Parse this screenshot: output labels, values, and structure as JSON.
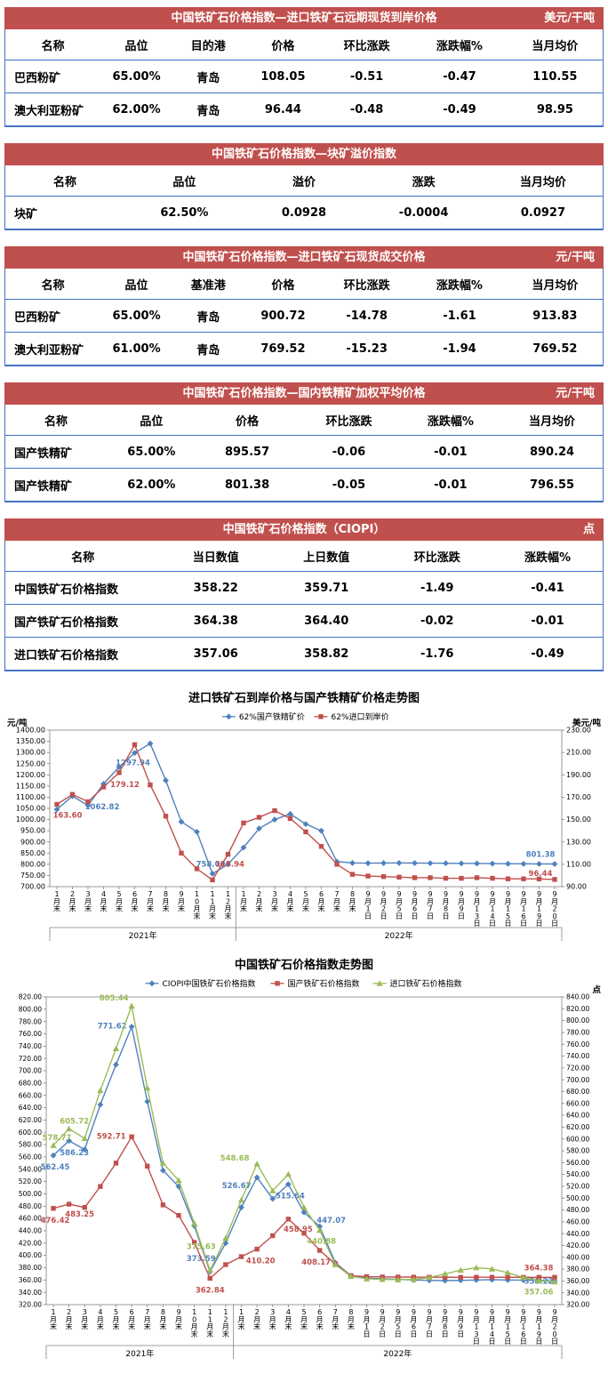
{
  "colors": {
    "header_bar": "#C0504D",
    "table_border": "#4472C4",
    "series_blue": "#4F81BD",
    "series_red": "#C0504D",
    "series_green": "#9BBB59"
  },
  "tables": [
    {
      "title": "中国铁矿石价格指数—进口铁矿石远期现货到岸价格",
      "unit": "美元/干吨",
      "headers": [
        "名称",
        "品位",
        "目的港",
        "价格",
        "环比涨跌",
        "涨跌幅%",
        "当月均价"
      ],
      "rows": [
        [
          "巴西粉矿",
          "65.00%",
          "青岛",
          "108.05",
          "-0.51",
          "-0.47",
          "110.55"
        ],
        [
          "澳大利亚粉矿",
          "62.00%",
          "青岛",
          "96.44",
          "-0.48",
          "-0.49",
          "98.95"
        ]
      ]
    },
    {
      "title": "中国铁矿石价格指数—块矿溢价指数",
      "unit": "",
      "headers": [
        "名称",
        "品位",
        "溢价",
        "涨跌",
        "当月均价"
      ],
      "rows": [
        [
          "块矿",
          "62.50%",
          "0.0928",
          "-0.0004",
          "0.0927"
        ]
      ]
    },
    {
      "title": "中国铁矿石价格指数—进口铁矿石现货成交价格",
      "unit": "元/干吨",
      "headers": [
        "名称",
        "品位",
        "基准港",
        "价格",
        "环比涨跌",
        "涨跌幅%",
        "当月均价"
      ],
      "rows": [
        [
          "巴西粉矿",
          "65.00%",
          "青岛",
          "900.72",
          "-14.78",
          "-1.61",
          "913.83"
        ],
        [
          "澳大利亚粉矿",
          "61.00%",
          "青岛",
          "769.52",
          "-15.23",
          "-1.94",
          "769.52"
        ]
      ]
    },
    {
      "title": "中国铁矿石价格指数—国内铁精矿加权平均价格",
      "unit": "元/干吨",
      "headers": [
        "名称",
        "品位",
        "价格",
        "环比涨跌",
        "涨跌幅%",
        "当月均价"
      ],
      "rows": [
        [
          "国产铁精矿",
          "65.00%",
          "895.57",
          "-0.06",
          "-0.01",
          "890.24"
        ],
        [
          "国产铁精矿",
          "62.00%",
          "801.38",
          "-0.05",
          "-0.01",
          "796.55"
        ]
      ]
    },
    {
      "title": "中国铁矿石价格指数（CIOPI）",
      "unit": "点",
      "headers": [
        "名称",
        "当日数值",
        "上日数值",
        "环比涨跌",
        "涨跌幅%"
      ],
      "rows": [
        [
          "中国铁矿石价格指数",
          "358.22",
          "359.71",
          "-1.49",
          "-0.41"
        ],
        [
          "国产铁矿石价格指数",
          "364.38",
          "364.40",
          "-0.02",
          "-0.01"
        ],
        [
          "进口铁矿石价格指数",
          "357.06",
          "358.82",
          "-1.76",
          "-0.49"
        ]
      ]
    }
  ],
  "chart_data": [
    {
      "type": "line",
      "title": "进口铁矿石到岸价格与国产铁精矿价格走势图",
      "grid": false,
      "legend_position": "top",
      "left_axis": {
        "unit": "元/吨",
        "min": 700,
        "max": 1400,
        "step": 50
      },
      "right_axis": {
        "unit": "美元/吨",
        "min": 90,
        "max": 230,
        "step": 20
      },
      "x": [
        "1月末",
        "2月末",
        "3月末",
        "4月末",
        "5月末",
        "6月末",
        "7月末",
        "8月末",
        "9月末",
        "10月末",
        "11月末",
        "12月末",
        "1月末",
        "2月末",
        "3月末",
        "4月末",
        "5月末",
        "6月末",
        "7月末",
        "8月末",
        "9月1日",
        "9月2日",
        "9月5日",
        "9月6日",
        "9月7日",
        "9月8日",
        "9月9日",
        "9月13日",
        "9月14日",
        "9月15日",
        "9月16日",
        "9月19日",
        "9月20日"
      ],
      "x_groups": [
        {
          "label": "2021年",
          "from": 0,
          "to": 11
        },
        {
          "label": "2022年",
          "from": 12,
          "to": 32
        }
      ],
      "series": [
        {
          "name": "62%国产铁精矿价",
          "color": "#4F81BD",
          "marker": "diamond",
          "axis": "left",
          "values": [
            1045,
            1105,
            1062.82,
            1160,
            1235,
            1297.94,
            1340,
            1175,
            990,
            945,
            758,
            800,
            875,
            960,
            1000,
            1025,
            980,
            950,
            812,
            806,
            805,
            805.5,
            806,
            805.5,
            805,
            804.5,
            804,
            803.5,
            803,
            802.5,
            802,
            801.5,
            801.38
          ],
          "labels": [
            {
              "i": 2,
              "text": "1062.82",
              "dx": 16,
              "dy": 4
            },
            {
              "i": 5,
              "text": "1297.94",
              "dx": -2,
              "dy": 14
            },
            {
              "i": 10,
              "text": "758.00",
              "dx": -2,
              "dy": -8
            },
            {
              "i": 32,
              "text": "801.38",
              "dx": -16,
              "dy": -8
            }
          ]
        },
        {
          "name": "62%进口到岸价",
          "color": "#C0504D",
          "marker": "square",
          "axis": "right",
          "values": [
            163.6,
            172.5,
            166,
            179.12,
            192,
            217,
            181,
            153,
            120,
            106,
            96,
            118.94,
            147,
            152,
            158,
            151,
            139,
            126,
            110,
            101,
            99.5,
            99,
            98.5,
            98,
            98,
            97.5,
            97.5,
            98,
            97.5,
            97,
            97,
            96.9,
            96.44
          ],
          "labels": [
            {
              "i": 0,
              "text": "163.60",
              "dx": 12,
              "dy": 15
            },
            {
              "i": 3,
              "text": "179.12",
              "dx": 24,
              "dy": 0
            },
            {
              "i": 11,
              "text": "118.94",
              "dx": 2,
              "dy": 14
            },
            {
              "i": 32,
              "text": "96.44",
              "dx": -16,
              "dy": -4
            }
          ]
        }
      ]
    },
    {
      "type": "line",
      "title": "中国铁矿石价格指数走势图",
      "grid": false,
      "legend_position": "top",
      "left_axis": {
        "unit": "",
        "min": 320,
        "max": 820,
        "step": 20
      },
      "right_axis": {
        "unit": "点",
        "min": 320,
        "max": 840,
        "step": 20
      },
      "x": [
        "1月末",
        "2月末",
        "3月末",
        "4月末",
        "5月末",
        "6月末",
        "7月末",
        "8月末",
        "9月末",
        "10月末",
        "11月末",
        "12月末",
        "1月末",
        "2月末",
        "3月末",
        "4月末",
        "5月末",
        "6月末",
        "7月末",
        "8月末",
        "9月1日",
        "9月2日",
        "9月5日",
        "9月6日",
        "9月7日",
        "9月8日",
        "9月9日",
        "9月13日",
        "9月14日",
        "9月15日",
        "9月16日",
        "9月19日",
        "9月20日"
      ],
      "x_groups": [
        {
          "label": "2021年",
          "from": 0,
          "to": 11
        },
        {
          "label": "2022年",
          "from": 12,
          "to": 32
        }
      ],
      "series": [
        {
          "name": "CIOPI中国铁矿石价格指数",
          "color": "#4F81BD",
          "marker": "diamond",
          "axis": "left",
          "values": [
            562.45,
            586.23,
            572,
            645,
            710,
            771.62,
            650,
            538,
            512,
            448,
            373.59,
            420,
            478,
            526.67,
            492,
            515.64,
            470,
            447.07,
            388,
            367,
            363,
            362,
            361,
            360,
            359.5,
            359,
            359.5,
            360,
            360.5,
            360,
            359.8,
            359.71,
            358.22
          ],
          "labels": [
            {
              "i": 0,
              "text": "562.45",
              "dx": 2,
              "dy": 16
            },
            {
              "i": 1,
              "text": "586.23",
              "dx": 6,
              "dy": 16
            },
            {
              "i": 5,
              "text": "771.62",
              "dx": -22,
              "dy": 2
            },
            {
              "i": 10,
              "text": "373.59",
              "dx": -10,
              "dy": -12
            },
            {
              "i": 13,
              "text": "526.67",
              "dx": -23,
              "dy": 12
            },
            {
              "i": 15,
              "text": "515.64",
              "dx": 2,
              "dy": 16
            },
            {
              "i": 17,
              "text": "447.07",
              "dx": 13,
              "dy": -4
            },
            {
              "i": 32,
              "text": "358.22",
              "dx": -18,
              "dy": 3
            }
          ]
        },
        {
          "name": "国产铁矿石价格指数",
          "color": "#C0504D",
          "marker": "square",
          "axis": "left",
          "values": [
            476.42,
            483.25,
            478,
            512,
            550,
            592.71,
            545,
            482,
            465,
            421,
            362.84,
            385,
            398,
            410.2,
            432,
            458.95,
            436,
            408.17,
            386,
            367,
            365.5,
            365,
            364.8,
            364.6,
            364.5,
            364.45,
            364.4,
            364.5,
            364.5,
            364.45,
            364.42,
            364.4,
            364.38
          ],
          "labels": [
            {
              "i": 0,
              "text": "476.42",
              "dx": 2,
              "dy": 16
            },
            {
              "i": 1,
              "text": "483.25",
              "dx": 12,
              "dy": 14
            },
            {
              "i": 5,
              "text": "592.71",
              "dx": -23,
              "dy": 2
            },
            {
              "i": 10,
              "text": "362.84",
              "dx": 0,
              "dy": 16
            },
            {
              "i": 13,
              "text": "410.20",
              "dx": 4,
              "dy": 16
            },
            {
              "i": 15,
              "text": "458.95",
              "dx": 11,
              "dy": 14
            },
            {
              "i": 17,
              "text": "408.17",
              "dx": -4,
              "dy": 16
            },
            {
              "i": 32,
              "text": "364.38",
              "dx": -18,
              "dy": -8
            }
          ]
        },
        {
          "name": "进口铁矿石价格指数",
          "color": "#9BBB59",
          "marker": "triangle",
          "axis": "left",
          "values": [
            578.77,
            605.72,
            590,
            668,
            736,
            805.44,
            672,
            550,
            522,
            452,
            375.63,
            428,
            490,
            548.68,
            505,
            532,
            478,
            440.88,
            385,
            366,
            362,
            361,
            360.5,
            361,
            364,
            370,
            376,
            380,
            378,
            372,
            364,
            358.82,
            357.06
          ],
          "labels": [
            {
              "i": 0,
              "text": "578.77",
              "dx": 4,
              "dy": -6
            },
            {
              "i": 1,
              "text": "605.72",
              "dx": 6,
              "dy": -6
            },
            {
              "i": 5,
              "text": "805.44",
              "dx": -20,
              "dy": -6
            },
            {
              "i": 10,
              "text": "375.63",
              "dx": -10,
              "dy": -24
            },
            {
              "i": 13,
              "text": "548.68",
              "dx": -25,
              "dy": -4
            },
            {
              "i": 17,
              "text": "440.88",
              "dx": 2,
              "dy": 15
            },
            {
              "i": 32,
              "text": "357.06",
              "dx": -18,
              "dy": 14
            }
          ]
        }
      ]
    }
  ]
}
